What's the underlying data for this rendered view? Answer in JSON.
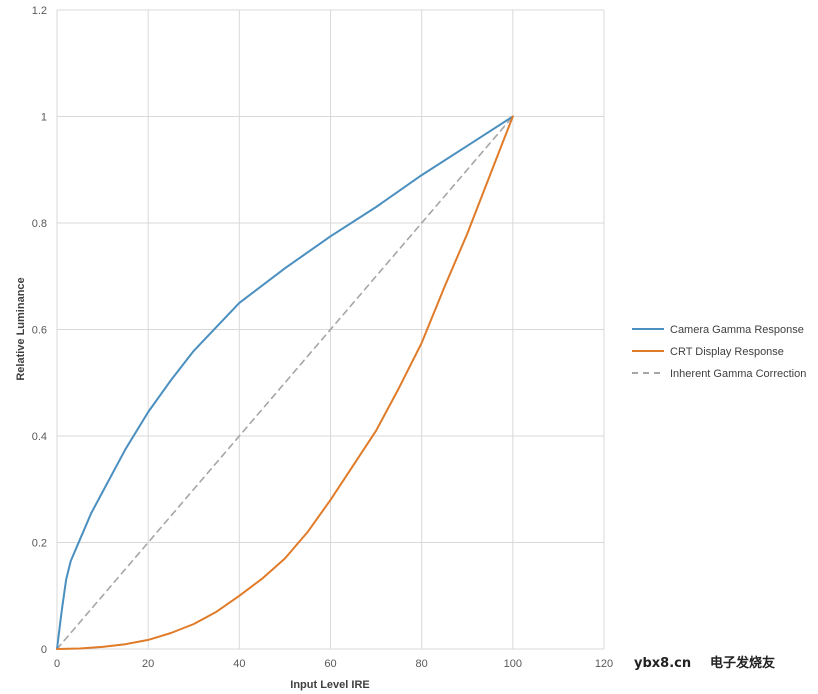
{
  "chart_data": {
    "type": "line",
    "title": "",
    "xlabel": "Input Level IRE",
    "ylabel": "Relative Luminance",
    "xlim": [
      0,
      120
    ],
    "ylim": [
      0,
      1.2
    ],
    "x_ticks": [
      0,
      20,
      40,
      60,
      80,
      100,
      120
    ],
    "y_ticks": [
      0,
      0.2,
      0.4,
      0.6,
      0.8,
      1,
      1.2
    ],
    "grid": true,
    "legend_position": "right",
    "series": [
      {
        "name": "Camera Gamma Response",
        "color": "#4a8fbf",
        "dash": false,
        "x": [
          0,
          1,
          2,
          3,
          5,
          7.5,
          10,
          15,
          20,
          25,
          30,
          40,
          50,
          60,
          70,
          80,
          90,
          100
        ],
        "y": [
          0,
          0.07,
          0.13,
          0.165,
          0.205,
          0.255,
          0.295,
          0.375,
          0.445,
          0.505,
          0.56,
          0.65,
          0.715,
          0.775,
          0.83,
          0.89,
          0.945,
          1.0
        ]
      },
      {
        "name": "CRT Display Response",
        "color": "#e07b29",
        "dash": false,
        "x": [
          0,
          5,
          10,
          15,
          20,
          25,
          30,
          35,
          40,
          45,
          50,
          55,
          60,
          65,
          70,
          75,
          80,
          85,
          90,
          95,
          100
        ],
        "y": [
          0,
          0.001,
          0.004,
          0.009,
          0.017,
          0.03,
          0.047,
          0.07,
          0.1,
          0.132,
          0.17,
          0.22,
          0.28,
          0.345,
          0.41,
          0.49,
          0.575,
          0.68,
          0.78,
          0.89,
          1.0
        ]
      },
      {
        "name": "Inherent Gamma Correction",
        "color": "#a6a6a6",
        "dash": true,
        "x": [
          0,
          100
        ],
        "y": [
          0,
          1.0
        ]
      }
    ]
  },
  "watermark": {
    "line1": "ybx8.cn",
    "line2": "电子发烧友"
  }
}
